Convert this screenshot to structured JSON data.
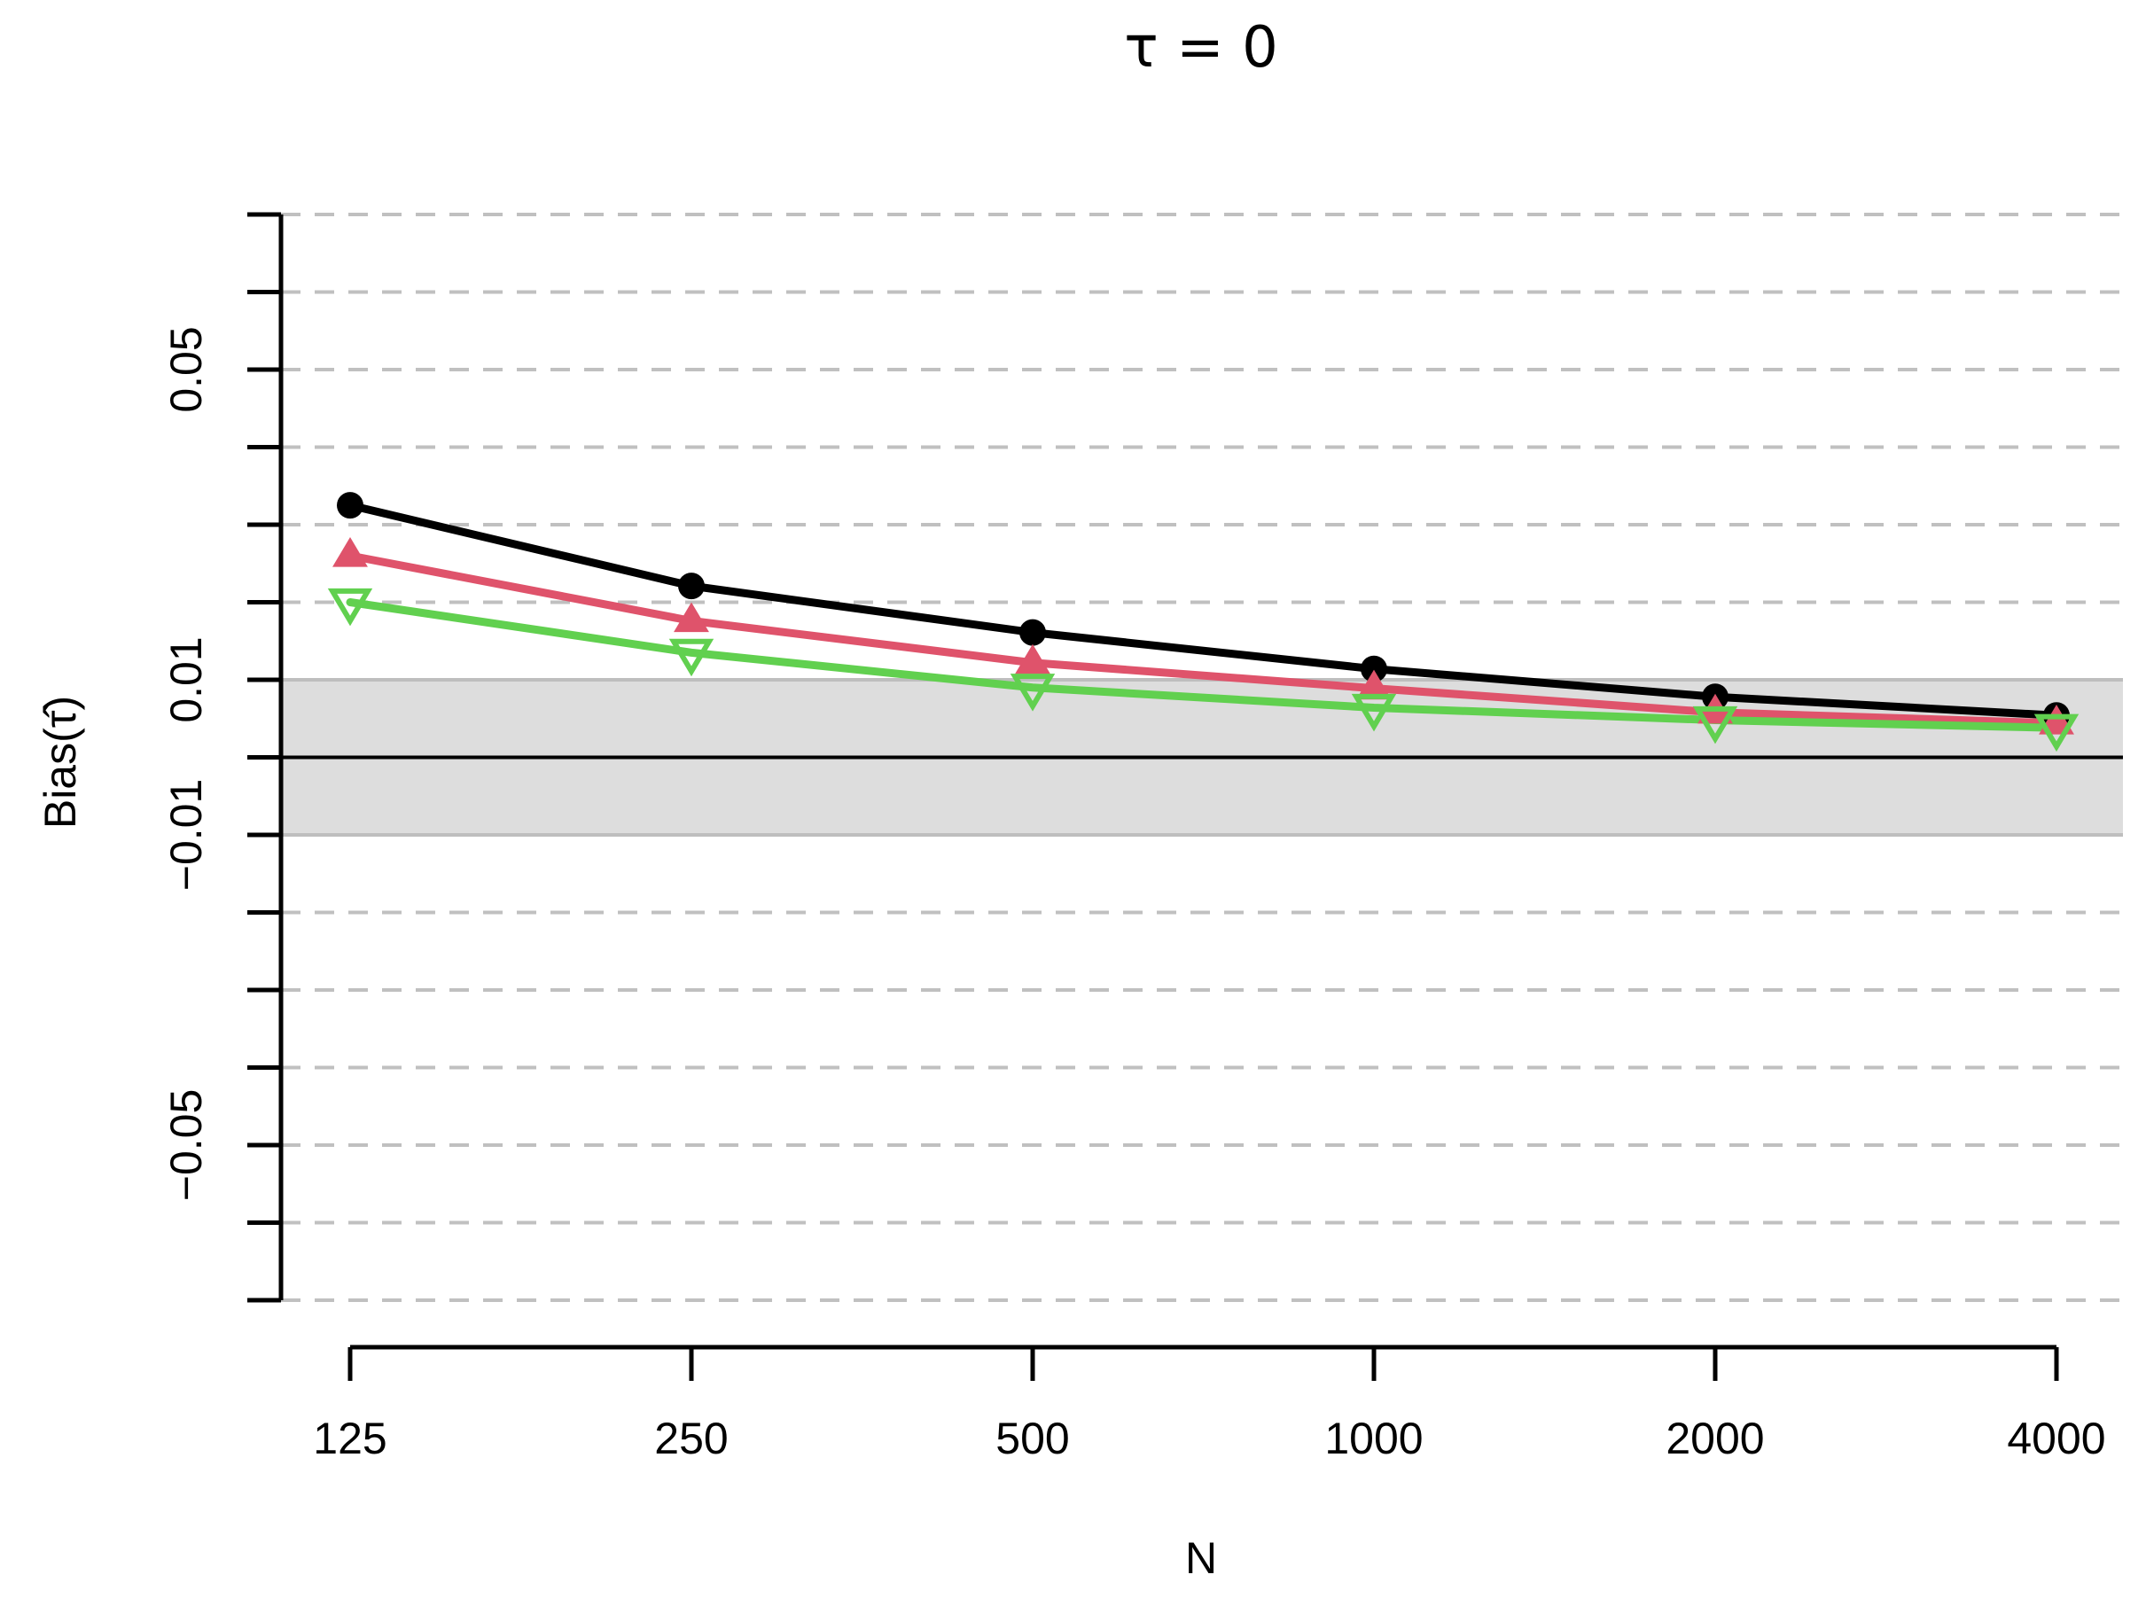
{
  "chart_data": {
    "type": "line",
    "title": "τ = 0",
    "xlabel": "N",
    "ylabel": "Bias(τ̂)",
    "categories": [
      "125",
      "250",
      "500",
      "1000",
      "2000",
      "4000"
    ],
    "ylim": [
      -0.07,
      0.07
    ],
    "y_ticks": [
      0.05,
      0.01,
      -0.01,
      -0.05
    ],
    "y_tick_labels": [
      "0.05",
      "0.01",
      "−0.01",
      "−0.05"
    ],
    "grid": true,
    "reference_band": [
      -0.01,
      0.01
    ],
    "reference_line": 0,
    "colors": {
      "band": "#dddddd",
      "band_edge": "#bebebe",
      "grid": "#c0c0c0"
    },
    "series": [
      {
        "values": [
          0.0325,
          0.0221,
          0.0161,
          0.0114,
          0.0078,
          0.0054
        ],
        "color": "#000000",
        "marker": "circle"
      },
      {
        "values": [
          0.026,
          0.0176,
          0.0122,
          0.0089,
          0.0058,
          0.0044
        ],
        "color": "#df536b",
        "marker": "triangle-up"
      },
      {
        "values": [
          0.02,
          0.0135,
          0.009,
          0.0064,
          0.0048,
          0.0038
        ],
        "color": "#61d04f",
        "marker": "triangle-down"
      }
    ]
  }
}
